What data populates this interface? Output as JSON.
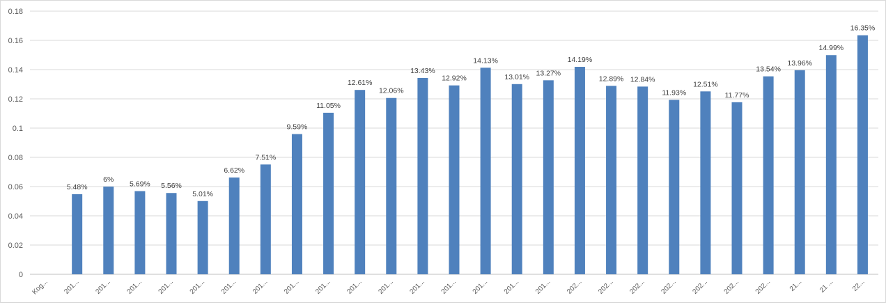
{
  "chart_data": {
    "type": "bar",
    "title": "",
    "xlabel": "",
    "ylabel": "",
    "ylim": [
      0,
      0.18
    ],
    "yticks": [
      "0",
      "0.02",
      "0.04",
      "0.06",
      "0.08",
      "0.1",
      "0.12",
      "0.14",
      "0.16",
      "0.18"
    ],
    "grid": true,
    "legend": "none",
    "categories": [
      "Kog...",
      "201...",
      "201...",
      "201...",
      "201...",
      "201...",
      "201...",
      "201...",
      "201...",
      "201...",
      "201...",
      "201...",
      "201...",
      "201...",
      "201...",
      "201...",
      "201...",
      "202...",
      "202...",
      "202...",
      "202...",
      "202...",
      "202...",
      "202...",
      "21...",
      "21 ...",
      "22..."
    ],
    "values": [
      null,
      0.0548,
      0.06,
      0.0569,
      0.0556,
      0.0501,
      0.0662,
      0.0751,
      0.0959,
      0.1105,
      0.1261,
      0.1206,
      0.1343,
      0.1292,
      0.1413,
      0.1301,
      0.1327,
      0.1419,
      0.1289,
      0.1284,
      0.1193,
      0.1251,
      0.1177,
      0.1354,
      0.1396,
      0.1499,
      0.1635
    ],
    "data_labels": [
      "",
      "5.48%",
      "6%",
      "5.69%",
      "5.56%",
      "5.01%",
      "6.62%",
      "7.51%",
      "9.59%",
      "11.05%",
      "12.61%",
      "12.06%",
      "13.43%",
      "12.92%",
      "14.13%",
      "13.01%",
      "13.27%",
      "14.19%",
      "12.89%",
      "12.84%",
      "11.93%",
      "12.51%",
      "11.77%",
      "13.54%",
      "13.96%",
      "14.99%",
      "16.35%"
    ],
    "colors": {
      "bar": "#4f81bd",
      "grid": "#d9d9d9",
      "axis": "#bfbfbf"
    }
  }
}
